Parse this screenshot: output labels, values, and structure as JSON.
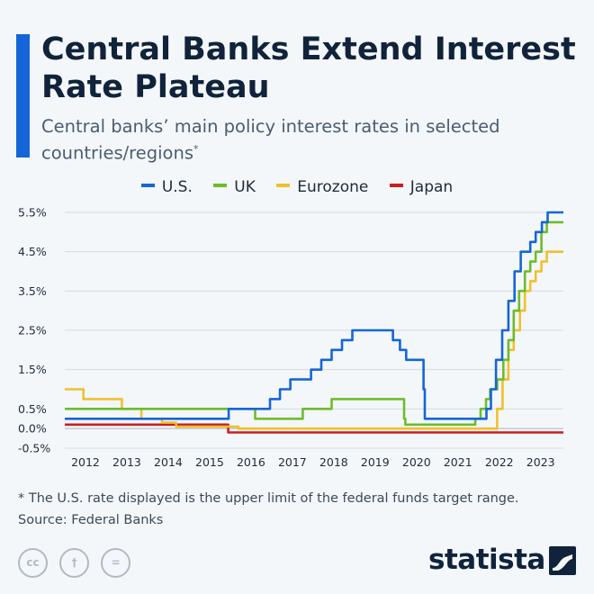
{
  "title": "Central Banks Extend Interest Rate Plateau",
  "subtitle": "Central banks’ main policy interest rates in selected countries/regions",
  "subtitle_mark": "*",
  "footnote": "* The U.S. rate displayed is the upper limit of the federal funds target range.",
  "source": "Source: Federal Banks",
  "brand": "statista",
  "license_icons": [
    "cc-icon",
    "attribution-icon",
    "no-derivatives-icon"
  ],
  "license_glyphs": [
    "cc",
    "†",
    "="
  ],
  "colors": {
    "us": "#1565d8",
    "uk": "#6cbd2c",
    "eurozone": "#f0c02c",
    "japan": "#c81e1e",
    "accent": "#1565d8"
  },
  "chart_data": {
    "type": "line",
    "x_range": [
      2011.5,
      2023.55
    ],
    "ylim": [
      -0.5,
      5.5
    ],
    "y_ticks": [
      5.5,
      4.5,
      3.5,
      2.5,
      1.5,
      0.5,
      0.0,
      -0.5
    ],
    "y_tick_labels": [
      "5.5%",
      "4.5%",
      "3.5%",
      "2.5%",
      "1.5%",
      "0.5%",
      "0.0%",
      "-0.5%"
    ],
    "x_ticks": [
      2012,
      2013,
      2014,
      2015,
      2016,
      2017,
      2018,
      2019,
      2020,
      2021,
      2022,
      2023
    ],
    "x_tick_labels": [
      "2012",
      "2013",
      "2014",
      "2015",
      "2016",
      "2017",
      "2018",
      "2019",
      "2020",
      "2021",
      "2022",
      "2023"
    ],
    "grid": true,
    "legend_position": "top",
    "series": [
      {
        "name": "U.S.",
        "color": "#1565d8",
        "points": [
          [
            2011.5,
            0.25
          ],
          [
            2015.46,
            0.25
          ],
          [
            2015.46,
            0.5
          ],
          [
            2016.46,
            0.5
          ],
          [
            2016.46,
            0.75
          ],
          [
            2016.7,
            0.75
          ],
          [
            2016.7,
            1.0
          ],
          [
            2016.95,
            1.0
          ],
          [
            2016.95,
            1.25
          ],
          [
            2017.45,
            1.25
          ],
          [
            2017.45,
            1.5
          ],
          [
            2017.7,
            1.5
          ],
          [
            2017.7,
            1.75
          ],
          [
            2017.95,
            1.75
          ],
          [
            2017.95,
            2.0
          ],
          [
            2018.2,
            2.0
          ],
          [
            2018.2,
            2.25
          ],
          [
            2018.45,
            2.25
          ],
          [
            2018.45,
            2.5
          ],
          [
            2019.0,
            2.5
          ],
          [
            2019.0,
            2.5
          ],
          [
            2019.43,
            2.5
          ],
          [
            2019.43,
            2.25
          ],
          [
            2019.6,
            2.25
          ],
          [
            2019.6,
            2.0
          ],
          [
            2019.75,
            2.0
          ],
          [
            2019.75,
            1.75
          ],
          [
            2020.17,
            1.75
          ],
          [
            2020.17,
            1.0
          ],
          [
            2020.2,
            1.0
          ],
          [
            2020.2,
            0.25
          ],
          [
            2021.69,
            0.25
          ],
          [
            2021.69,
            0.5
          ],
          [
            2021.8,
            0.5
          ],
          [
            2021.8,
            1.0
          ],
          [
            2021.92,
            1.0
          ],
          [
            2021.92,
            1.75
          ],
          [
            2022.07,
            1.75
          ],
          [
            2022.07,
            2.5
          ],
          [
            2022.22,
            2.5
          ],
          [
            2022.22,
            3.25
          ],
          [
            2022.37,
            3.25
          ],
          [
            2022.37,
            4.0
          ],
          [
            2022.52,
            4.0
          ],
          [
            2022.52,
            4.5
          ],
          [
            2022.75,
            4.5
          ],
          [
            2022.75,
            4.75
          ],
          [
            2022.88,
            4.75
          ],
          [
            2022.88,
            5.0
          ],
          [
            2023.03,
            5.0
          ],
          [
            2023.03,
            5.25
          ],
          [
            2023.17,
            5.25
          ],
          [
            2023.17,
            5.5
          ],
          [
            2023.55,
            5.5
          ]
        ]
      },
      {
        "name": "UK",
        "color": "#6cbd2c",
        "points": [
          [
            2011.5,
            0.5
          ],
          [
            2016.1,
            0.5
          ],
          [
            2016.1,
            0.25
          ],
          [
            2017.25,
            0.25
          ],
          [
            2017.25,
            0.5
          ],
          [
            2017.95,
            0.5
          ],
          [
            2017.95,
            0.75
          ],
          [
            2019.7,
            0.75
          ],
          [
            2019.7,
            0.25
          ],
          [
            2019.73,
            0.25
          ],
          [
            2019.73,
            0.1
          ],
          [
            2021.42,
            0.1
          ],
          [
            2021.42,
            0.25
          ],
          [
            2021.55,
            0.25
          ],
          [
            2021.55,
            0.5
          ],
          [
            2021.68,
            0.5
          ],
          [
            2021.68,
            0.75
          ],
          [
            2021.78,
            0.75
          ],
          [
            2021.78,
            1.0
          ],
          [
            2021.95,
            1.0
          ],
          [
            2021.95,
            1.25
          ],
          [
            2022.1,
            1.25
          ],
          [
            2022.1,
            1.75
          ],
          [
            2022.22,
            1.75
          ],
          [
            2022.22,
            2.25
          ],
          [
            2022.35,
            2.25
          ],
          [
            2022.35,
            3.0
          ],
          [
            2022.48,
            3.0
          ],
          [
            2022.48,
            3.5
          ],
          [
            2022.62,
            3.5
          ],
          [
            2022.62,
            4.0
          ],
          [
            2022.75,
            4.0
          ],
          [
            2022.75,
            4.25
          ],
          [
            2022.88,
            4.25
          ],
          [
            2022.88,
            4.5
          ],
          [
            2023.02,
            4.5
          ],
          [
            2023.02,
            5.0
          ],
          [
            2023.15,
            5.0
          ],
          [
            2023.15,
            5.25
          ],
          [
            2023.55,
            5.25
          ]
        ]
      },
      {
        "name": "Eurozone",
        "color": "#f0c02c",
        "points": [
          [
            2011.5,
            1.0
          ],
          [
            2011.95,
            1.0
          ],
          [
            2011.95,
            0.75
          ],
          [
            2012.88,
            0.75
          ],
          [
            2012.88,
            0.5
          ],
          [
            2013.35,
            0.5
          ],
          [
            2013.35,
            0.25
          ],
          [
            2013.85,
            0.25
          ],
          [
            2013.85,
            0.15
          ],
          [
            2014.19,
            0.15
          ],
          [
            2014.19,
            0.05
          ],
          [
            2015.7,
            0.05
          ],
          [
            2015.7,
            0.0
          ],
          [
            2021.95,
            0.0
          ],
          [
            2021.95,
            0.5
          ],
          [
            2022.08,
            0.5
          ],
          [
            2022.08,
            1.25
          ],
          [
            2022.22,
            1.25
          ],
          [
            2022.22,
            2.0
          ],
          [
            2022.35,
            2.0
          ],
          [
            2022.35,
            2.5
          ],
          [
            2022.5,
            2.5
          ],
          [
            2022.5,
            3.0
          ],
          [
            2022.62,
            3.0
          ],
          [
            2022.62,
            3.5
          ],
          [
            2022.75,
            3.5
          ],
          [
            2022.75,
            3.75
          ],
          [
            2022.88,
            3.75
          ],
          [
            2022.88,
            4.0
          ],
          [
            2023.02,
            4.0
          ],
          [
            2023.02,
            4.25
          ],
          [
            2023.15,
            4.25
          ],
          [
            2023.15,
            4.5
          ],
          [
            2023.55,
            4.5
          ]
        ]
      },
      {
        "name": "Japan",
        "color": "#c81e1e",
        "points": [
          [
            2011.5,
            0.1
          ],
          [
            2015.45,
            0.1
          ],
          [
            2015.45,
            -0.1
          ],
          [
            2023.55,
            -0.1
          ]
        ]
      }
    ]
  }
}
